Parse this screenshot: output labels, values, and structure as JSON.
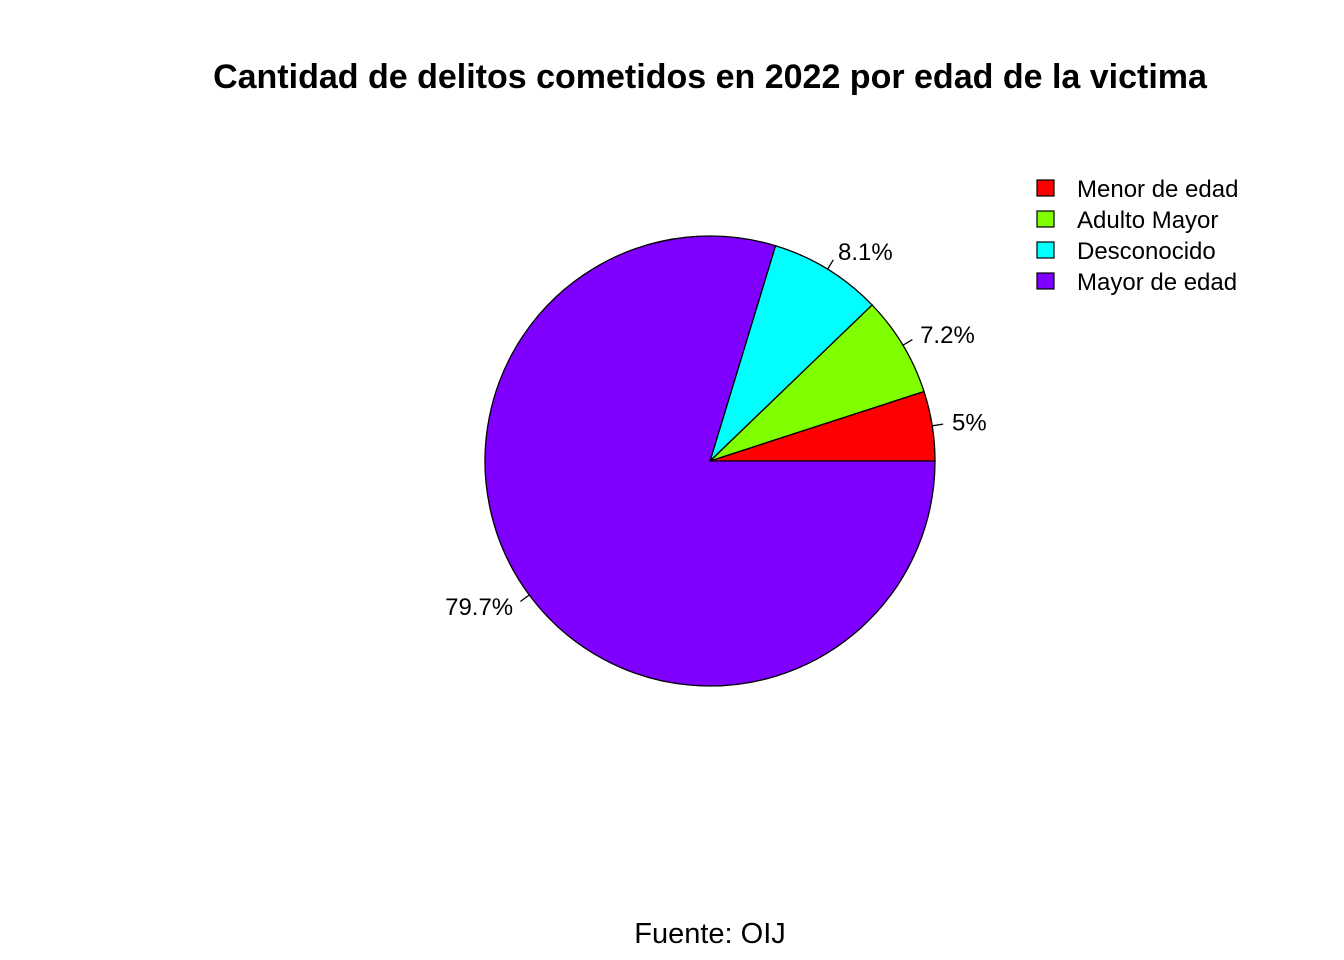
{
  "chart_data": {
    "type": "pie",
    "title": "Cantidad de delitos cometidos en 2022 por edad de la victima",
    "caption": "Fuente: OIJ",
    "legend_position": "top-right",
    "slices": [
      {
        "name": "Menor de edad",
        "value": 5.0,
        "label": "5%",
        "color": "#FF0000"
      },
      {
        "name": "Adulto Mayor",
        "value": 7.2,
        "label": "7.2%",
        "color": "#80FF00"
      },
      {
        "name": "Desconocido",
        "value": 8.1,
        "label": "8.1%",
        "color": "#00FFFF"
      },
      {
        "name": "Mayor de edad",
        "value": 79.7,
        "label": "79.7%",
        "color": "#8000FF"
      }
    ]
  }
}
